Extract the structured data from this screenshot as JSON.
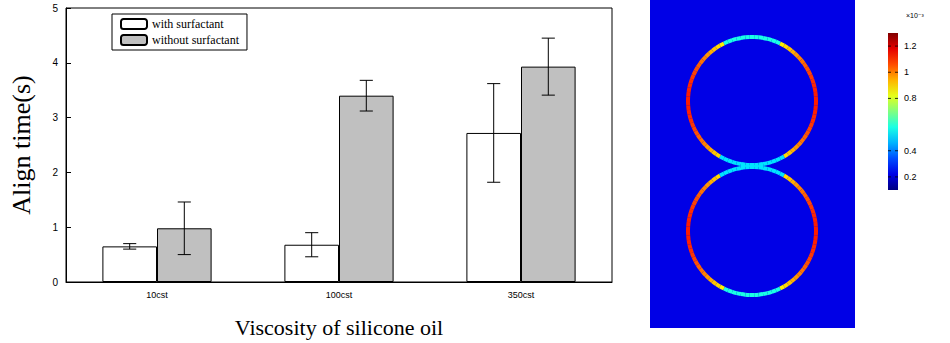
{
  "chart_data": [
    {
      "type": "bar",
      "x_label": "Viscosity of silicone oil",
      "y_label": "Align time(s)",
      "categories": [
        "10cst",
        "100cst",
        "350cst"
      ],
      "series": [
        {
          "name": "with surfactant",
          "color": "#ffffff",
          "values": [
            0.65,
            0.68,
            2.72
          ],
          "errors": [
            0.05,
            0.22,
            0.9
          ]
        },
        {
          "name": "without surfactant",
          "color": "#c0c0c0",
          "values": [
            0.98,
            3.4,
            3.93
          ],
          "errors": [
            0.48,
            0.28,
            0.52
          ]
        }
      ],
      "ylim": [
        0,
        5
      ],
      "yticks": [
        0,
        1,
        2,
        3,
        4,
        5
      ],
      "grid": false,
      "legend": "upper left"
    },
    {
      "type": "field_map",
      "colorbar": {
        "range": [
          0.1,
          1.3
        ],
        "ticks": [
          0.2,
          0.4,
          0.8,
          1,
          1.2
        ],
        "label": "×10⁻³"
      }
    }
  ]
}
